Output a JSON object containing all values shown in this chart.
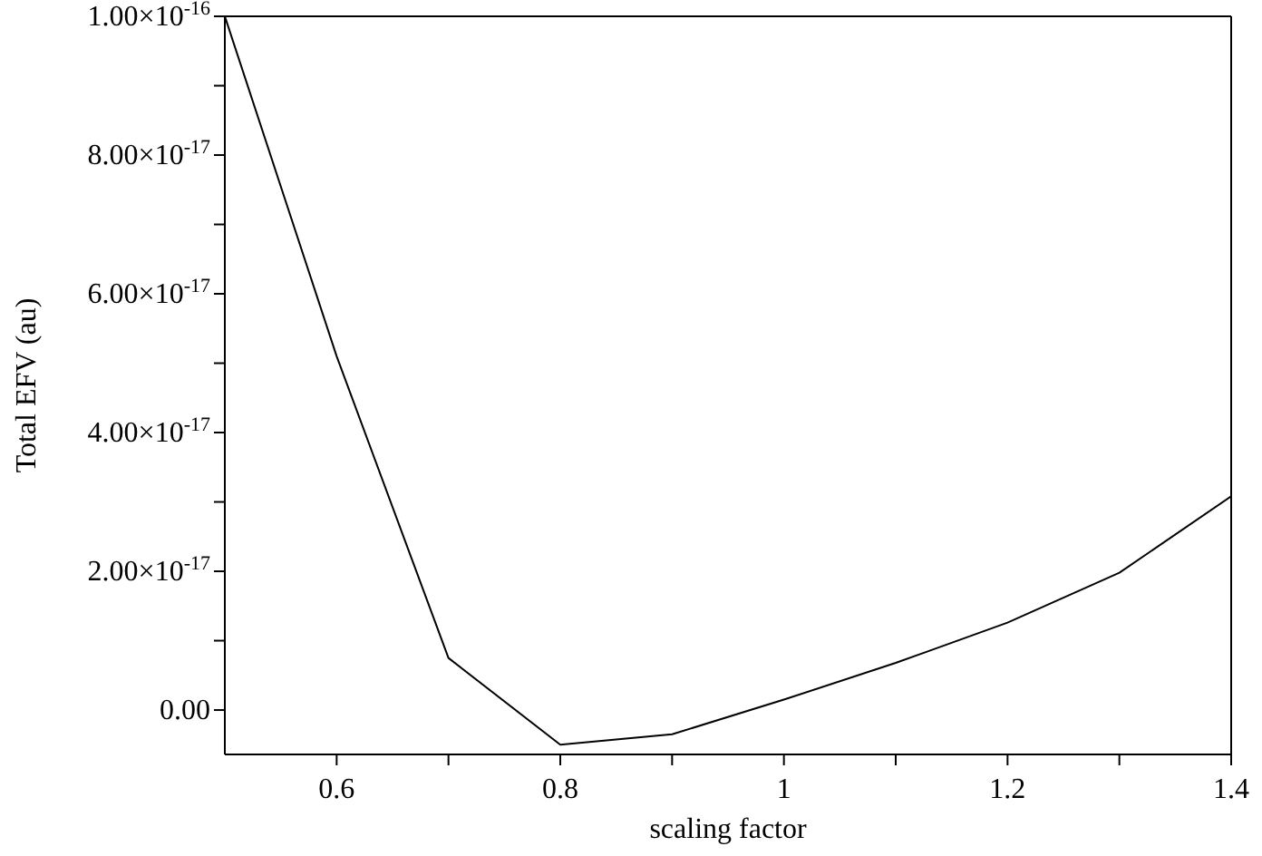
{
  "chart_data": {
    "type": "line",
    "xlabel": "scaling factor",
    "ylabel": "Total EFV (au)",
    "x": [
      0.5,
      0.6,
      0.7,
      0.8,
      0.9,
      1.0,
      1.1,
      1.2,
      1.3,
      1.4
    ],
    "series": [
      {
        "color": "#000000",
        "values": [
          1e-16,
          5.1e-17,
          7.5e-18,
          -5e-18,
          -3.5e-18,
          1.5e-18,
          6.8e-18,
          1.26e-17,
          1.98e-17,
          3.08e-17
        ]
      }
    ],
    "xlim": [
      0.5,
      1.4
    ],
    "xticks": [
      0.6,
      {
        "value": 0.7,
        "label": null
      },
      0.8,
      {
        "value": 0.9,
        "label": null
      },
      1,
      {
        "value": 1.1,
        "label": null
      },
      1.2,
      {
        "value": 1.3,
        "label": null
      },
      1.4
    ],
    "ylim": [
      -6.4e-18,
      1e-16
    ],
    "yticks": [
      {
        "value": 0,
        "label": "0.00"
      },
      {
        "value": 1e-17,
        "label": null
      },
      {
        "value": 2e-17,
        "label": "2.00×10$^{-17}$"
      },
      {
        "value": 3e-17,
        "label": null
      },
      {
        "value": 4e-17,
        "label": "4.00×10$^{-17}$"
      },
      {
        "value": 5e-17,
        "label": null
      },
      {
        "value": 6e-17,
        "label": "6.00×10$^{-17}$"
      },
      {
        "value": 7e-17,
        "label": null
      },
      {
        "value": 8e-17,
        "label": "8.00×10$^{-17}$"
      },
      {
        "value": 9e-17,
        "label": null
      },
      {
        "value": 1e-16,
        "label": "1.00×10$^{-16}$"
      }
    ],
    "grid": false,
    "legend": false,
    "marker": "none",
    "line_style": "solid"
  }
}
